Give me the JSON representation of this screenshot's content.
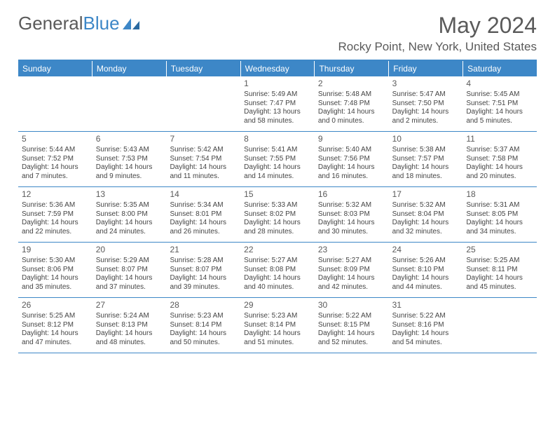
{
  "logo": {
    "text1": "General",
    "text2": "Blue"
  },
  "title": "May 2024",
  "location": "Rocky Point, New York, United States",
  "weekdays": [
    "Sunday",
    "Monday",
    "Tuesday",
    "Wednesday",
    "Thursday",
    "Friday",
    "Saturday"
  ],
  "colors": {
    "accent": "#3d87c7",
    "text": "#5a5a5a",
    "body": "#444444",
    "bg": "#ffffff"
  },
  "weeks": [
    [
      {
        "n": "",
        "sr": "",
        "ss": "",
        "dl1": "",
        "dl2": ""
      },
      {
        "n": "",
        "sr": "",
        "ss": "",
        "dl1": "",
        "dl2": ""
      },
      {
        "n": "",
        "sr": "",
        "ss": "",
        "dl1": "",
        "dl2": ""
      },
      {
        "n": "1",
        "sr": "Sunrise: 5:49 AM",
        "ss": "Sunset: 7:47 PM",
        "dl1": "Daylight: 13 hours",
        "dl2": "and 58 minutes."
      },
      {
        "n": "2",
        "sr": "Sunrise: 5:48 AM",
        "ss": "Sunset: 7:48 PM",
        "dl1": "Daylight: 14 hours",
        "dl2": "and 0 minutes."
      },
      {
        "n": "3",
        "sr": "Sunrise: 5:47 AM",
        "ss": "Sunset: 7:50 PM",
        "dl1": "Daylight: 14 hours",
        "dl2": "and 2 minutes."
      },
      {
        "n": "4",
        "sr": "Sunrise: 5:45 AM",
        "ss": "Sunset: 7:51 PM",
        "dl1": "Daylight: 14 hours",
        "dl2": "and 5 minutes."
      }
    ],
    [
      {
        "n": "5",
        "sr": "Sunrise: 5:44 AM",
        "ss": "Sunset: 7:52 PM",
        "dl1": "Daylight: 14 hours",
        "dl2": "and 7 minutes."
      },
      {
        "n": "6",
        "sr": "Sunrise: 5:43 AM",
        "ss": "Sunset: 7:53 PM",
        "dl1": "Daylight: 14 hours",
        "dl2": "and 9 minutes."
      },
      {
        "n": "7",
        "sr": "Sunrise: 5:42 AM",
        "ss": "Sunset: 7:54 PM",
        "dl1": "Daylight: 14 hours",
        "dl2": "and 11 minutes."
      },
      {
        "n": "8",
        "sr": "Sunrise: 5:41 AM",
        "ss": "Sunset: 7:55 PM",
        "dl1": "Daylight: 14 hours",
        "dl2": "and 14 minutes."
      },
      {
        "n": "9",
        "sr": "Sunrise: 5:40 AM",
        "ss": "Sunset: 7:56 PM",
        "dl1": "Daylight: 14 hours",
        "dl2": "and 16 minutes."
      },
      {
        "n": "10",
        "sr": "Sunrise: 5:38 AM",
        "ss": "Sunset: 7:57 PM",
        "dl1": "Daylight: 14 hours",
        "dl2": "and 18 minutes."
      },
      {
        "n": "11",
        "sr": "Sunrise: 5:37 AM",
        "ss": "Sunset: 7:58 PM",
        "dl1": "Daylight: 14 hours",
        "dl2": "and 20 minutes."
      }
    ],
    [
      {
        "n": "12",
        "sr": "Sunrise: 5:36 AM",
        "ss": "Sunset: 7:59 PM",
        "dl1": "Daylight: 14 hours",
        "dl2": "and 22 minutes."
      },
      {
        "n": "13",
        "sr": "Sunrise: 5:35 AM",
        "ss": "Sunset: 8:00 PM",
        "dl1": "Daylight: 14 hours",
        "dl2": "and 24 minutes."
      },
      {
        "n": "14",
        "sr": "Sunrise: 5:34 AM",
        "ss": "Sunset: 8:01 PM",
        "dl1": "Daylight: 14 hours",
        "dl2": "and 26 minutes."
      },
      {
        "n": "15",
        "sr": "Sunrise: 5:33 AM",
        "ss": "Sunset: 8:02 PM",
        "dl1": "Daylight: 14 hours",
        "dl2": "and 28 minutes."
      },
      {
        "n": "16",
        "sr": "Sunrise: 5:32 AM",
        "ss": "Sunset: 8:03 PM",
        "dl1": "Daylight: 14 hours",
        "dl2": "and 30 minutes."
      },
      {
        "n": "17",
        "sr": "Sunrise: 5:32 AM",
        "ss": "Sunset: 8:04 PM",
        "dl1": "Daylight: 14 hours",
        "dl2": "and 32 minutes."
      },
      {
        "n": "18",
        "sr": "Sunrise: 5:31 AM",
        "ss": "Sunset: 8:05 PM",
        "dl1": "Daylight: 14 hours",
        "dl2": "and 34 minutes."
      }
    ],
    [
      {
        "n": "19",
        "sr": "Sunrise: 5:30 AM",
        "ss": "Sunset: 8:06 PM",
        "dl1": "Daylight: 14 hours",
        "dl2": "and 35 minutes."
      },
      {
        "n": "20",
        "sr": "Sunrise: 5:29 AM",
        "ss": "Sunset: 8:07 PM",
        "dl1": "Daylight: 14 hours",
        "dl2": "and 37 minutes."
      },
      {
        "n": "21",
        "sr": "Sunrise: 5:28 AM",
        "ss": "Sunset: 8:07 PM",
        "dl1": "Daylight: 14 hours",
        "dl2": "and 39 minutes."
      },
      {
        "n": "22",
        "sr": "Sunrise: 5:27 AM",
        "ss": "Sunset: 8:08 PM",
        "dl1": "Daylight: 14 hours",
        "dl2": "and 40 minutes."
      },
      {
        "n": "23",
        "sr": "Sunrise: 5:27 AM",
        "ss": "Sunset: 8:09 PM",
        "dl1": "Daylight: 14 hours",
        "dl2": "and 42 minutes."
      },
      {
        "n": "24",
        "sr": "Sunrise: 5:26 AM",
        "ss": "Sunset: 8:10 PM",
        "dl1": "Daylight: 14 hours",
        "dl2": "and 44 minutes."
      },
      {
        "n": "25",
        "sr": "Sunrise: 5:25 AM",
        "ss": "Sunset: 8:11 PM",
        "dl1": "Daylight: 14 hours",
        "dl2": "and 45 minutes."
      }
    ],
    [
      {
        "n": "26",
        "sr": "Sunrise: 5:25 AM",
        "ss": "Sunset: 8:12 PM",
        "dl1": "Daylight: 14 hours",
        "dl2": "and 47 minutes."
      },
      {
        "n": "27",
        "sr": "Sunrise: 5:24 AM",
        "ss": "Sunset: 8:13 PM",
        "dl1": "Daylight: 14 hours",
        "dl2": "and 48 minutes."
      },
      {
        "n": "28",
        "sr": "Sunrise: 5:23 AM",
        "ss": "Sunset: 8:14 PM",
        "dl1": "Daylight: 14 hours",
        "dl2": "and 50 minutes."
      },
      {
        "n": "29",
        "sr": "Sunrise: 5:23 AM",
        "ss": "Sunset: 8:14 PM",
        "dl1": "Daylight: 14 hours",
        "dl2": "and 51 minutes."
      },
      {
        "n": "30",
        "sr": "Sunrise: 5:22 AM",
        "ss": "Sunset: 8:15 PM",
        "dl1": "Daylight: 14 hours",
        "dl2": "and 52 minutes."
      },
      {
        "n": "31",
        "sr": "Sunrise: 5:22 AM",
        "ss": "Sunset: 8:16 PM",
        "dl1": "Daylight: 14 hours",
        "dl2": "and 54 minutes."
      },
      {
        "n": "",
        "sr": "",
        "ss": "",
        "dl1": "",
        "dl2": ""
      }
    ]
  ]
}
